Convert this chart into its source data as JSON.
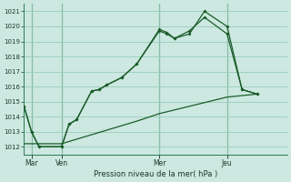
{
  "background_color": "#cce8e0",
  "grid_color": "#99ccbb",
  "line_color": "#1a5c2a",
  "vline_color": "#2a7a50",
  "xlabel": "Pression niveau de la mer( hPa )",
  "ylim": [
    1011.5,
    1021.5
  ],
  "yticks": [
    1012,
    1013,
    1014,
    1015,
    1016,
    1017,
    1018,
    1019,
    1020,
    1021
  ],
  "xlim": [
    0,
    17.5
  ],
  "day_labels": [
    "Mar",
    "Ven",
    "Mer",
    "Jeu"
  ],
  "day_positions": [
    0.5,
    2.5,
    9.0,
    13.5
  ],
  "vline_positions": [
    0.5,
    2.5,
    9.0,
    13.5
  ],
  "series1_x": [
    0.0,
    0.5,
    1.0,
    2.5,
    3.0,
    3.5,
    4.5,
    5.0,
    5.5,
    6.5,
    7.5,
    9.0,
    9.5,
    10.0,
    11.0,
    12.0,
    13.5,
    14.5,
    15.5
  ],
  "series1_y": [
    1014.7,
    1013.0,
    1012.0,
    1012.0,
    1013.5,
    1013.8,
    1015.7,
    1015.8,
    1016.1,
    1016.6,
    1017.5,
    1019.8,
    1019.6,
    1019.2,
    1019.5,
    1021.0,
    1020.0,
    1015.8,
    1015.5
  ],
  "series2_x": [
    0.0,
    0.5,
    1.0,
    2.5,
    3.0,
    3.5,
    4.5,
    5.0,
    5.5,
    6.5,
    7.5,
    9.0,
    9.5,
    10.0,
    11.0,
    12.0,
    13.5,
    14.5,
    15.5
  ],
  "series2_y": [
    1014.7,
    1013.0,
    1012.0,
    1012.0,
    1013.5,
    1013.8,
    1015.7,
    1015.8,
    1016.1,
    1016.6,
    1017.5,
    1019.7,
    1019.5,
    1019.2,
    1019.7,
    1020.6,
    1019.5,
    1015.8,
    1015.5
  ],
  "series3_x": [
    0.0,
    2.5,
    7.5,
    9.0,
    13.5,
    15.5
  ],
  "series3_y": [
    1012.2,
    1012.2,
    1013.7,
    1014.2,
    1015.3,
    1015.5
  ]
}
